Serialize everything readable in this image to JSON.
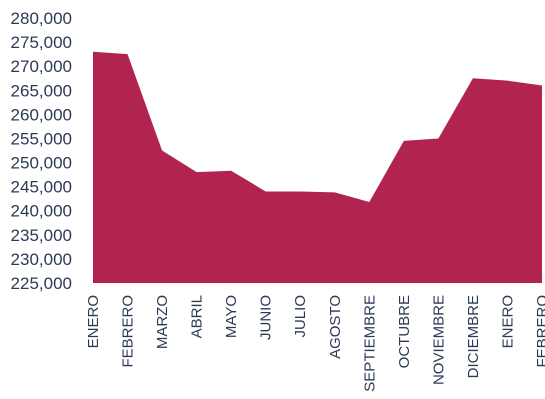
{
  "chart_data": {
    "type": "area",
    "categories": [
      "ENERO",
      "FEBRERO",
      "MARZO",
      "ABRIL",
      "MAYO",
      "JUNIO",
      "JULIO",
      "AGOSTO",
      "SEPTIEMBRE",
      "OCTUBRE",
      "NOVIEMBRE",
      "DICIEMBRE",
      "ENERO",
      "FEBRERO"
    ],
    "series": [
      {
        "values": [
          273000,
          272500,
          252500,
          248000,
          248300,
          244000,
          244000,
          243800,
          241800,
          254500,
          255000,
          267500,
          267000,
          266000
        ],
        "color": "#b0244f"
      }
    ],
    "ytick_labels": [
      "225,000",
      "230,000",
      "235,000",
      "240,000",
      "245,000",
      "250,000",
      "255,000",
      "260,000",
      "265,000",
      "270,000",
      "275,000",
      "280,000"
    ],
    "ylim": [
      225000,
      280000
    ],
    "title": "",
    "xlabel": "",
    "ylabel": "",
    "grid": false,
    "legend": "none"
  }
}
